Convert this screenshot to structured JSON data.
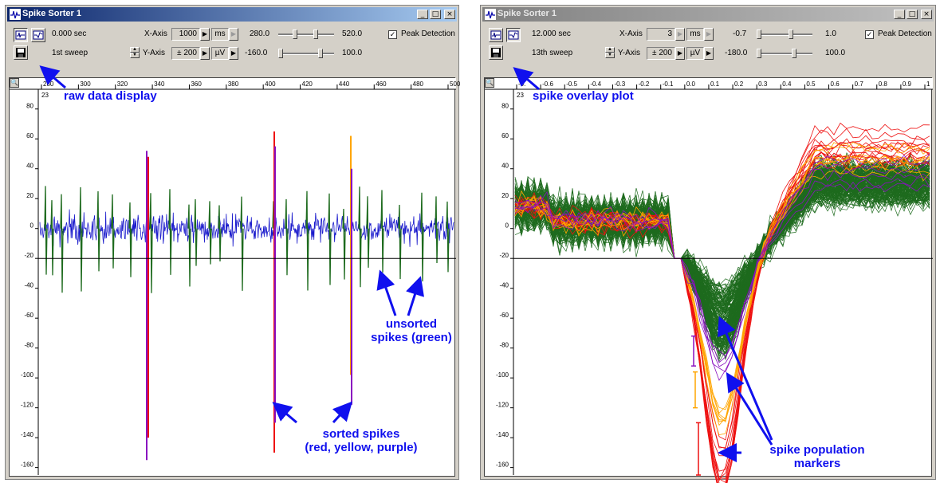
{
  "colors": {
    "raw": "#1a1acc",
    "unsorted": "#1e6b1e",
    "red": "#ee1010",
    "yellow": "#ffa500",
    "purple": "#8a10c0",
    "annotation": "#1010ee"
  },
  "windows": [
    {
      "title": "Spike Sorter 1",
      "controls": [
        "_",
        "□",
        "×"
      ],
      "time": "0.000 sec",
      "sweep": "1st sweep",
      "x_axis_label": "X-Axis",
      "x_axis_value": "1000",
      "x_unit": "ms",
      "y_axis_label": "Y-Axis",
      "y_axis_value": "± 200",
      "y_unit": "µV",
      "slider1_min": "280.0",
      "slider1_max": "520.0",
      "slider2_min": "-160.0",
      "slider2_max": "100.0",
      "peak_detection_label": "Peak Detection",
      "peak_detection_checked": true,
      "corner_label": "23",
      "x_ticks": [
        "280",
        "300",
        "320",
        "340",
        "360",
        "380",
        "400",
        "420",
        "440",
        "460",
        "480",
        "500"
      ],
      "y_ticks": [
        "80",
        "60",
        "40",
        "20",
        "0",
        "-20",
        "-40",
        "-60",
        "-80",
        "-100",
        "-120",
        "-140",
        "-160"
      ],
      "threshold": -20
    },
    {
      "title": "Spike Sorter 1",
      "controls": [
        "_",
        "□",
        "×"
      ],
      "time": "12.000 sec",
      "sweep": "13th sweep",
      "x_axis_label": "X-Axis",
      "x_axis_value": "3",
      "x_unit": "ms",
      "y_axis_label": "Y-Axis",
      "y_axis_value": "± 200",
      "y_unit": "µV",
      "slider1_min": "-0.7",
      "slider1_max": "1.0",
      "slider2_min": "-180.0",
      "slider2_max": "100.0",
      "peak_detection_label": "Peak Detection",
      "peak_detection_checked": true,
      "corner_label": "23",
      "x_ticks": [
        "-0.",
        "-0.6",
        "-0.5",
        "-0.4",
        "-0.3",
        "-0.2",
        "-0.1",
        "0.0",
        "0.1",
        "0.2",
        "0.3",
        "0.4",
        "0.5",
        "0.6",
        "0.7",
        "0.8",
        "0.9",
        "1"
      ],
      "y_ticks": [
        "80",
        "60",
        "40",
        "20",
        "0",
        "-20",
        "-40",
        "-60",
        "-80",
        "-100",
        "-120",
        "-140",
        "-160"
      ],
      "threshold": -20
    }
  ],
  "annotations": {
    "raw_data_display": "raw data display",
    "sorted_spikes_line1": "sorted spikes",
    "sorted_spikes_line2": "(red, yellow, purple)",
    "unsorted_line1": "unsorted",
    "unsorted_line2": "spikes (green)",
    "spike_overlay_plot": "spike overlay plot",
    "population_line1": "spike population",
    "population_line2": "markers"
  }
}
